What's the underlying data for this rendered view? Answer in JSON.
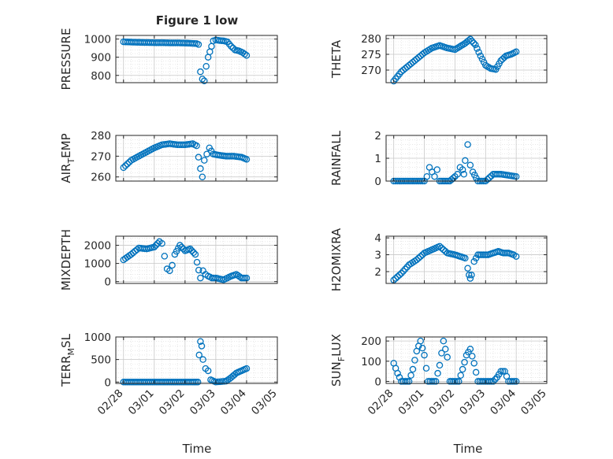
{
  "figure": {
    "title": "Figure 1 low",
    "marker_color": "#0072BD",
    "axis_color": "#262626",
    "grid_color": "#d9d9d9"
  },
  "chart_data": [
    {
      "type": "scatter",
      "id": "pressure",
      "title": "Figure 1 low",
      "ylabel": "PRESSURE",
      "ylabel_main": "PRESSURE",
      "ylabel_sub": "",
      "xlim": [
        "02/27 18:00",
        "03/05 00:00"
      ],
      "ylim": [
        760,
        1020
      ],
      "yticks": [
        800,
        900,
        1000
      ],
      "xticks": [
        "02/28",
        "03/01",
        "03/02",
        "03/03",
        "03/04",
        "03/05"
      ],
      "grid": true,
      "minor_grid": true,
      "t": [
        0,
        2.46,
        3.4
      ],
      "x": [
        "02/28 00:00",
        "02/28 06:00",
        "02/28 12:00",
        "02/28 18:00",
        "03/01 00:00",
        "03/01 06:00",
        "03/01 12:00",
        "03/01 18:00",
        "03/02 00:00",
        "03/02 06:00",
        "03/02 09:00",
        "03/02 10:30",
        "03/02 12:00",
        "03/02 13:30",
        "03/02 15:00",
        "03/02 16:30",
        "03/02 18:00",
        "03/02 22:00",
        "03/03 00:00",
        "03/03 03:00",
        "03/03 06:00",
        "03/03 09:00",
        "03/03 12:00",
        "03/03 15:00",
        "03/03 18:00",
        "03/03 21:00",
        "03/04 00:00"
      ],
      "y": [
        985,
        983,
        982,
        981,
        980,
        980,
        979,
        979,
        978,
        976,
        975,
        970,
        820,
        780,
        770,
        850,
        900,
        990,
        995,
        992,
        990,
        985,
        960,
        940,
        935,
        925,
        910
      ]
    },
    {
      "type": "scatter",
      "id": "theta",
      "ylabel": "THETA",
      "ylabel_main": "THETA",
      "ylabel_sub": "",
      "xlim": [
        "02/27 18:00",
        "03/05 00:00"
      ],
      "ylim": [
        266,
        281
      ],
      "yticks": [
        270,
        275,
        280
      ],
      "xticks": [
        "02/28",
        "03/01",
        "03/02",
        "03/03",
        "03/04",
        "03/05"
      ],
      "grid": true,
      "minor_grid": true,
      "x": [
        "02/28 00:00",
        "02/28 06:00",
        "02/28 12:00",
        "02/28 18:00",
        "03/01 00:00",
        "03/01 06:00",
        "03/01 12:00",
        "03/01 18:00",
        "03/02 00:00",
        "03/02 04:00",
        "03/02 08:00",
        "03/02 12:00",
        "03/02 16:00",
        "03/02 20:00",
        "03/03 00:00",
        "03/03 04:00",
        "03/03 08:00",
        "03/03 12:00",
        "03/03 16:00",
        "03/03 20:00",
        "03/04 00:00"
      ],
      "y": [
        266.5,
        269.5,
        271.5,
        273.5,
        275.5,
        277,
        277.8,
        277,
        276.5,
        277.5,
        278.5,
        279.8,
        278,
        274.5,
        271.5,
        270.5,
        270.2,
        273,
        274.5,
        275,
        275.8
      ]
    },
    {
      "type": "scatter",
      "id": "air_temp",
      "ylabel": "AIR_TEMP",
      "ylabel_main": "AIR",
      "ylabel_sub": "T",
      "ylabel_rest": "EMP",
      "xlim": [
        "02/27 18:00",
        "03/05 00:00"
      ],
      "ylim": [
        258,
        280
      ],
      "yticks": [
        260,
        270,
        280
      ],
      "xticks": [
        "02/28",
        "03/01",
        "03/02",
        "03/03",
        "03/04",
        "03/05"
      ],
      "grid": true,
      "minor_grid": true,
      "x": [
        "02/28 00:00",
        "02/28 06:00",
        "02/28 12:00",
        "02/28 18:00",
        "03/01 00:00",
        "03/01 06:00",
        "03/01 12:00",
        "03/01 18:00",
        "03/02 00:00",
        "03/02 06:00",
        "03/02 09:00",
        "03/02 12:00",
        "03/02 13:30",
        "03/02 15:00",
        "03/02 17:00",
        "03/02 19:00",
        "03/02 22:00",
        "03/03 02:00",
        "03/03 08:00",
        "03/03 14:00",
        "03/03 20:00",
        "03/04 00:00"
      ],
      "y": [
        264.5,
        268,
        270,
        272,
        274,
        275.5,
        276,
        275.5,
        275.5,
        276,
        275,
        264,
        260,
        268,
        271,
        274,
        271,
        270.5,
        270,
        270,
        269.5,
        268.5
      ]
    },
    {
      "type": "scatter",
      "id": "rainfall",
      "ylabel": "RAINFALL",
      "ylabel_main": "RAINFALL",
      "ylabel_sub": "",
      "xlim": [
        "02/27 18:00",
        "03/05 00:00"
      ],
      "ylim": [
        0,
        2
      ],
      "yticks": [
        0,
        1,
        2
      ],
      "xticks": [
        "02/28",
        "03/01",
        "03/02",
        "03/03",
        "03/04",
        "03/05"
      ],
      "grid": true,
      "minor_grid": true,
      "x": [
        "02/28 00:00",
        "02/28 12:00",
        "03/01 00:00",
        "03/01 02:00",
        "03/01 04:00",
        "03/01 06:00",
        "03/01 08:00",
        "03/01 10:00",
        "03/01 12:00",
        "03/01 16:00",
        "03/01 20:00",
        "03/02 00:00",
        "03/02 02:00",
        "03/02 04:00",
        "03/02 06:00",
        "03/02 07:00",
        "03/02 08:00",
        "03/02 10:00",
        "03/02 12:00",
        "03/02 14:00",
        "03/02 18:00",
        "03/03 00:00",
        "03/03 06:00",
        "03/03 09:00",
        "03/03 12:00",
        "03/03 18:00",
        "03/04 00:00"
      ],
      "y": [
        0,
        0,
        0,
        0.2,
        0.6,
        0.4,
        0.2,
        0.5,
        0,
        0,
        0,
        0.2,
        0.3,
        0.6,
        0.5,
        0.3,
        0.9,
        1.6,
        0.7,
        0.4,
        0,
        0,
        0.3,
        0.3,
        0.3,
        0.25,
        0.2
      ]
    },
    {
      "type": "scatter",
      "id": "mixdepth",
      "ylabel": "MIXDEPTH",
      "ylabel_main": "MIXDEPTH",
      "ylabel_sub": "",
      "xlim": [
        "02/27 18:00",
        "03/05 00:00"
      ],
      "ylim": [
        -100,
        2500
      ],
      "yticks": [
        0,
        1000,
        2000
      ],
      "xticks": [
        "02/28",
        "03/01",
        "03/02",
        "03/03",
        "03/04",
        "03/05"
      ],
      "grid": true,
      "minor_grid": true,
      "x": [
        "02/28 00:00",
        "02/28 06:00",
        "02/28 12:00",
        "02/28 18:00",
        "03/01 00:00",
        "03/01 04:00",
        "03/01 06:00",
        "03/01 08:00",
        "03/01 10:00",
        "03/01 12:00",
        "03/01 14:00",
        "03/01 16:00",
        "03/01 20:00",
        "03/02 00:00",
        "03/02 04:00",
        "03/02 08:00",
        "03/02 12:00",
        "03/02 14:00",
        "03/02 16:00",
        "03/02 18:00",
        "03/02 21:00",
        "03/03 00:00",
        "03/03 06:00",
        "03/03 12:00",
        "03/03 16:00",
        "03/03 20:00",
        "03/04 00:00"
      ],
      "y": [
        1200,
        1500,
        1850,
        1800,
        1900,
        2200,
        2100,
        1400,
        700,
        600,
        900,
        1500,
        2000,
        1700,
        1800,
        1500,
        200,
        600,
        400,
        300,
        200,
        200,
        100,
        300,
        400,
        200,
        200
      ]
    },
    {
      "type": "scatter",
      "id": "h2omixra",
      "ylabel": "H2OMIXRA",
      "ylabel_main": "H2OMIXRA",
      "ylabel_sub": "",
      "xlim": [
        "02/27 18:00",
        "03/05 00:00"
      ],
      "ylim": [
        1.3,
        4.1
      ],
      "yticks": [
        2,
        3,
        4
      ],
      "xticks": [
        "02/28",
        "03/01",
        "03/02",
        "03/03",
        "03/04",
        "03/05"
      ],
      "grid": true,
      "minor_grid": true,
      "x": [
        "02/28 00:00",
        "02/28 06:00",
        "02/28 12:00",
        "02/28 18:00",
        "03/01 00:00",
        "03/01 06:00",
        "03/01 12:00",
        "03/01 18:00",
        "03/02 00:00",
        "03/02 04:00",
        "03/02 08:00",
        "03/02 10:00",
        "03/02 11:00",
        "03/02 12:00",
        "03/02 13:00",
        "03/02 15:00",
        "03/02 18:00",
        "03/02 22:00",
        "03/03 02:00",
        "03/03 06:00",
        "03/03 10:00",
        "03/03 14:00",
        "03/03 18:00",
        "03/03 22:00",
        "03/04 00:00"
      ],
      "y": [
        1.5,
        1.9,
        2.4,
        2.7,
        3.1,
        3.3,
        3.5,
        3.1,
        3.0,
        2.9,
        2.8,
        2.2,
        1.8,
        1.6,
        1.8,
        2.6,
        3.0,
        3.0,
        3.0,
        3.1,
        3.2,
        3.1,
        3.1,
        3.0,
        2.9
      ]
    },
    {
      "type": "scatter",
      "id": "terr_msl",
      "ylabel": "TERR_MSL",
      "ylabel_main": "TERR",
      "ylabel_sub": "M",
      "ylabel_rest": "SL",
      "xlim": [
        "02/27 18:00",
        "03/05 00:00"
      ],
      "ylim": [
        -30,
        1000
      ],
      "yticks": [
        0,
        500,
        1000
      ],
      "xticks": [
        "02/28",
        "03/01",
        "03/02",
        "03/03",
        "03/04",
        "03/05"
      ],
      "grid": true,
      "minor_grid": true,
      "x": [
        "02/28 00:00",
        "02/28 12:00",
        "03/01 00:00",
        "03/01 12:00",
        "03/02 00:00",
        "03/02 06:00",
        "03/02 10:00",
        "03/02 11:00",
        "03/02 12:00",
        "03/02 13:00",
        "03/02 14:00",
        "03/02 16:00",
        "03/02 18:00",
        "03/02 20:00",
        "03/03 00:00",
        "03/03 08:00",
        "03/03 12:00",
        "03/03 16:00",
        "03/03 20:00",
        "03/04 00:00"
      ],
      "y": [
        0,
        0,
        0,
        0,
        0,
        0,
        0,
        600,
        900,
        800,
        500,
        300,
        250,
        50,
        0,
        20,
        100,
        200,
        250,
        300
      ]
    },
    {
      "type": "scatter",
      "id": "sun_flux",
      "ylabel": "SUN_FLUX",
      "ylabel_main": "SUN",
      "ylabel_sub": "F",
      "ylabel_rest": "LUX",
      "xlim": [
        "02/27 18:00",
        "03/05 00:00"
      ],
      "ylim": [
        -10,
        220
      ],
      "yticks": [
        0,
        100,
        200
      ],
      "xticks": [
        "02/28",
        "03/01",
        "03/02",
        "03/03",
        "03/04",
        "03/05"
      ],
      "grid": true,
      "minor_grid": true,
      "x": [
        "02/28 00:00",
        "02/28 03:00",
        "02/28 06:00",
        "02/28 12:00",
        "02/28 15:00",
        "02/28 18:00",
        "02/28 21:00",
        "03/01 00:00",
        "03/01 03:00",
        "03/01 06:00",
        "03/01 09:00",
        "03/01 12:00",
        "03/01 15:00",
        "03/01 18:00",
        "03/01 20:00",
        "03/02 00:00",
        "03/02 03:00",
        "03/02 06:00",
        "03/02 09:00",
        "03/02 12:00",
        "03/02 15:00",
        "03/02 18:00",
        "03/03 00:00",
        "03/03 06:00",
        "03/03 09:00",
        "03/03 12:00",
        "03/03 15:00",
        "03/03 18:00",
        "03/04 00:00"
      ],
      "y": [
        90,
        40,
        0,
        0,
        60,
        150,
        200,
        130,
        0,
        0,
        0,
        80,
        200,
        120,
        0,
        0,
        0,
        60,
        130,
        160,
        90,
        0,
        0,
        0,
        20,
        50,
        50,
        0,
        0
      ]
    }
  ],
  "xlabel": "Time"
}
